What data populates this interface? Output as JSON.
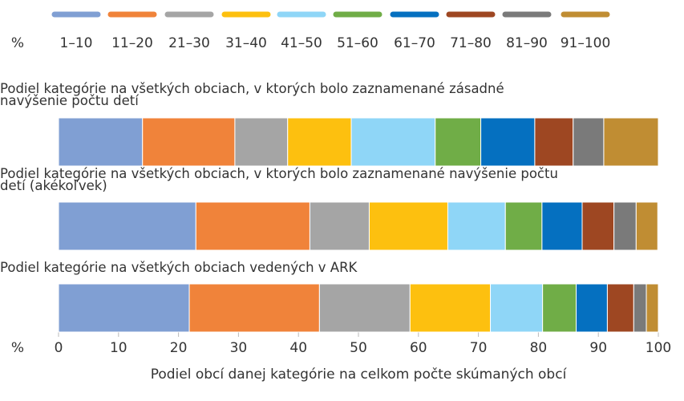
{
  "chart_data": {
    "type": "stacked_barh",
    "legend_unit": "%",
    "x_unit": "%",
    "xlabel": "Podiel obcí danej kategórie na celkom počte skúmaných obcí",
    "categories": [
      "Podiel kategórie na všetkých obciach, v ktorých bolo zaznamenané zásadné navýšenie počtu detí",
      "Podiel kategórie na všetkých obciach, v ktorých bolo zaznamenané navýšenie počtu detí (akékoľvek)",
      "Podiel kategórie na všetkých obciach vedených v ARK"
    ],
    "series": [
      {
        "name": "1–10",
        "color": "#809fd3",
        "values": [
          14.0,
          22.9,
          21.8
        ]
      },
      {
        "name": "11–20",
        "color": "#f0833a",
        "values": [
          15.4,
          19.0,
          21.7
        ]
      },
      {
        "name": "21–30",
        "color": "#a5a5a5",
        "values": [
          8.8,
          9.9,
          15.1
        ]
      },
      {
        "name": "31–40",
        "color": "#fdc00f",
        "values": [
          10.6,
          13.1,
          13.4
        ]
      },
      {
        "name": "41–50",
        "color": "#8fd6f7",
        "values": [
          14.0,
          9.6,
          8.7
        ]
      },
      {
        "name": "51–60",
        "color": "#70ad47",
        "values": [
          7.6,
          6.1,
          5.6
        ]
      },
      {
        "name": "61–70",
        "color": "#0570c0",
        "values": [
          9.0,
          6.7,
          5.2
        ]
      },
      {
        "name": "71–80",
        "color": "#9e4722",
        "values": [
          6.4,
          5.3,
          4.4
        ]
      },
      {
        "name": "81–90",
        "color": "#7a7a7a",
        "values": [
          5.1,
          3.7,
          2.1
        ]
      },
      {
        "name": "91–100",
        "color": "#c08d33",
        "values": [
          9.1,
          3.6,
          2.0
        ]
      }
    ],
    "xlim": [
      0,
      100
    ],
    "xticks": [
      0,
      10,
      20,
      30,
      40,
      50,
      60,
      70,
      80,
      90,
      100
    ],
    "legend_position": "top"
  }
}
